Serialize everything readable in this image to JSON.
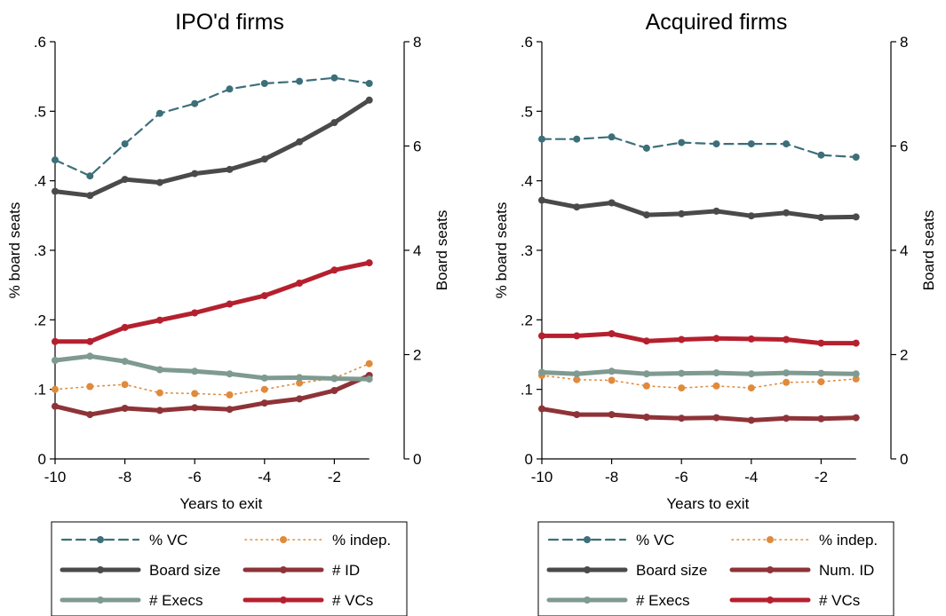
{
  "colors": {
    "pct_vc": "#3d6f7a",
    "pct_indep": "#e08a3c",
    "board_size": "#4a4a4a",
    "num_id": "#8e3338",
    "execs": "#7f9a90",
    "vcs": "#b5202e"
  },
  "chart_data": [
    {
      "type": "line",
      "title": "IPO'd firms",
      "xlabel": "Years to exit",
      "ylabel_left": "% board seats",
      "ylabel_right": "Board seats",
      "xlim": [
        -10,
        0
      ],
      "ylim_left": [
        0,
        0.6
      ],
      "ylim_right": [
        0,
        8
      ],
      "x_ticks": [
        -10,
        -8,
        -6,
        -4,
        -2
      ],
      "x_tick_labels": [
        "-10",
        "-8",
        "-6",
        "-4",
        "-2"
      ],
      "y_left_ticks": [
        0,
        0.1,
        0.2,
        0.3,
        0.4,
        0.5,
        0.6
      ],
      "y_left_tick_labels": [
        "0",
        ".1",
        ".2",
        ".3",
        ".4",
        ".5",
        ".6"
      ],
      "y_right_ticks": [
        0,
        2,
        4,
        6,
        8
      ],
      "y_right_tick_labels": [
        "0",
        "2",
        "4",
        "6",
        "8"
      ],
      "x": [
        -10,
        -9,
        -8,
        -7,
        -6,
        -5,
        -4,
        -3,
        -2,
        -1
      ],
      "series": [
        {
          "key": "pct_vc",
          "name": "% VC",
          "axis": "left",
          "style": "dashed",
          "values": [
            0.43,
            0.407,
            0.453,
            0.497,
            0.511,
            0.532,
            0.54,
            0.543,
            0.548,
            0.54
          ]
        },
        {
          "key": "pct_indep",
          "name": "% indep.",
          "axis": "left",
          "style": "dotted",
          "values": [
            0.1,
            0.104,
            0.107,
            0.095,
            0.094,
            0.092,
            0.1,
            0.109,
            0.116,
            0.137
          ]
        },
        {
          "key": "board_size",
          "name": "Board size",
          "axis": "right",
          "style": "thick",
          "values": [
            5.13,
            5.05,
            5.36,
            5.3,
            5.47,
            5.55,
            5.75,
            6.08,
            6.45,
            6.88
          ]
        },
        {
          "key": "num_id",
          "name": "# ID",
          "axis": "right",
          "style": "thick",
          "values": [
            1.01,
            0.85,
            0.97,
            0.93,
            0.98,
            0.95,
            1.07,
            1.15,
            1.31,
            1.6
          ]
        },
        {
          "key": "execs",
          "name": "# Execs",
          "axis": "right",
          "style": "thick",
          "values": [
            1.89,
            1.97,
            1.87,
            1.71,
            1.68,
            1.63,
            1.55,
            1.56,
            1.54,
            1.53
          ]
        },
        {
          "key": "vcs",
          "name": "# VCs",
          "axis": "right",
          "style": "thick",
          "values": [
            2.25,
            2.25,
            2.52,
            2.66,
            2.8,
            2.97,
            3.13,
            3.37,
            3.62,
            3.76
          ]
        }
      ],
      "legend": {
        "placement": "bottom",
        "entries": [
          "% VC",
          "% indep.",
          "Board size",
          "# ID",
          "# Execs",
          "# VCs"
        ]
      }
    },
    {
      "type": "line",
      "title": "Acquired firms",
      "xlabel": "Years to exit",
      "ylabel_left": "% board seats",
      "ylabel_right": "Board seats",
      "xlim": [
        -10,
        0
      ],
      "ylim_left": [
        0,
        0.6
      ],
      "ylim_right": [
        0,
        8
      ],
      "x_ticks": [
        -10,
        -8,
        -6,
        -4,
        -2
      ],
      "x_tick_labels": [
        "-10",
        "-8",
        "-6",
        "-4",
        "-2"
      ],
      "y_left_ticks": [
        0,
        0.1,
        0.2,
        0.3,
        0.4,
        0.5,
        0.6
      ],
      "y_left_tick_labels": [
        "0",
        ".1",
        ".2",
        ".3",
        ".4",
        ".5",
        ".6"
      ],
      "y_right_ticks": [
        0,
        2,
        4,
        6,
        8
      ],
      "y_right_tick_labels": [
        "0",
        "2",
        "4",
        "6",
        "8"
      ],
      "x": [
        -10,
        -9,
        -8,
        -7,
        -6,
        -5,
        -4,
        -3,
        -2,
        -1
      ],
      "series": [
        {
          "key": "pct_vc",
          "name": "% VC",
          "axis": "left",
          "style": "dashed",
          "values": [
            0.46,
            0.46,
            0.463,
            0.447,
            0.455,
            0.453,
            0.453,
            0.453,
            0.437,
            0.434
          ]
        },
        {
          "key": "pct_indep",
          "name": "% indep.",
          "axis": "left",
          "style": "dotted",
          "values": [
            0.12,
            0.114,
            0.113,
            0.105,
            0.102,
            0.105,
            0.102,
            0.11,
            0.111,
            0.115
          ]
        },
        {
          "key": "board_size",
          "name": "Board size",
          "axis": "right",
          "style": "thick",
          "values": [
            4.96,
            4.83,
            4.91,
            4.68,
            4.7,
            4.75,
            4.66,
            4.72,
            4.63,
            4.64
          ]
        },
        {
          "key": "num_id",
          "name": "Num. ID",
          "axis": "right",
          "style": "thick",
          "values": [
            0.96,
            0.85,
            0.85,
            0.8,
            0.78,
            0.79,
            0.74,
            0.78,
            0.77,
            0.79
          ]
        },
        {
          "key": "execs",
          "name": "# Execs",
          "axis": "right",
          "style": "thick",
          "values": [
            1.66,
            1.63,
            1.68,
            1.63,
            1.64,
            1.65,
            1.63,
            1.65,
            1.64,
            1.63
          ]
        },
        {
          "key": "vcs",
          "name": "# VCs",
          "axis": "right",
          "style": "thick",
          "values": [
            2.36,
            2.36,
            2.4,
            2.26,
            2.29,
            2.31,
            2.3,
            2.29,
            2.22,
            2.22
          ]
        }
      ],
      "legend": {
        "placement": "bottom",
        "entries": [
          "% VC",
          "% indep.",
          "Board size",
          "Num. ID",
          "# Execs",
          "# VCs"
        ]
      }
    }
  ]
}
